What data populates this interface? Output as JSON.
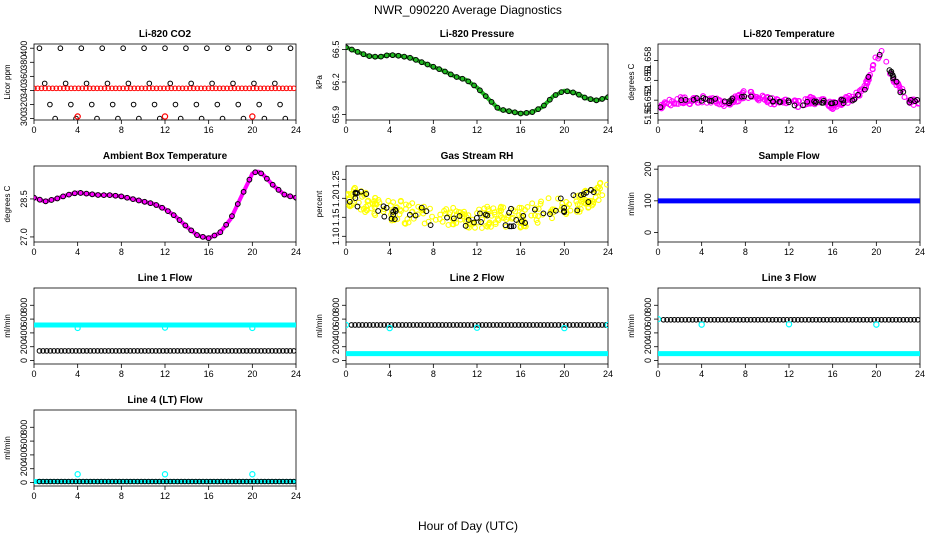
{
  "figure": {
    "title": "NWR_090220  Average Diagnostics",
    "xlabel": "Hour of Day (UTC)"
  },
  "colors": {
    "black": "#000000",
    "red": "#ff0000",
    "green": "#22bb22",
    "magenta": "#ff00ff",
    "yellow": "#ffff00",
    "cyan": "#00ffff",
    "blue": "#0000ff"
  },
  "chart_data": [
    {
      "type": "scatter",
      "title": "Li-820 CO2",
      "ylabel": "Licor ppm",
      "xlim": [
        0,
        24
      ],
      "ylim": [
        298,
        406
      ],
      "xticks": [
        0,
        4,
        8,
        12,
        16,
        20,
        24
      ],
      "yticks": [
        300,
        320,
        340,
        360,
        380,
        400
      ],
      "ytick_labels": [
        "300",
        "320",
        "340",
        "360",
        "380",
        "400"
      ],
      "series": [
        {
          "name": "reference levels",
          "color": "black",
          "style": "ring",
          "x_start": 0.5,
          "x_end": 23.5,
          "levels": [
            300,
            320,
            350,
            400
          ]
        },
        {
          "name": "sample",
          "color": "red",
          "style": "ring",
          "x_start": 0,
          "x_end": 23.8,
          "value": 343
        },
        {
          "name": "low outliers",
          "color": "red",
          "style": "ring",
          "x": [
            4,
            12,
            20
          ],
          "y": [
            303,
            303,
            303
          ]
        }
      ]
    },
    {
      "type": "scatter",
      "title": "Li-820 Pressure",
      "ylabel": "kPa",
      "xlim": [
        0,
        24
      ],
      "ylim": [
        65.85,
        66.55
      ],
      "xticks": [
        0,
        4,
        8,
        12,
        16,
        20,
        24
      ],
      "yticks": [
        65.9,
        66.2,
        66.5
      ],
      "ytick_labels": [
        "65.9",
        "66.2",
        "66.5"
      ],
      "series": [
        {
          "name": "pressure",
          "color": "green",
          "style": "line",
          "x": [
            0,
            1,
            2,
            3,
            4,
            5,
            6,
            7,
            8,
            9,
            10,
            11,
            12,
            13,
            14,
            15,
            16,
            17,
            18,
            19,
            20,
            21,
            22,
            23,
            24
          ],
          "y": [
            66.52,
            66.48,
            66.44,
            66.43,
            66.45,
            66.44,
            66.42,
            66.38,
            66.34,
            66.3,
            66.25,
            66.22,
            66.15,
            66.05,
            65.95,
            65.93,
            65.91,
            65.92,
            65.97,
            66.07,
            66.12,
            66.1,
            66.05,
            66.03,
            66.06
          ]
        }
      ]
    },
    {
      "type": "scatter",
      "title": "Li-820 Temperature",
      "ylabel": "degrees C",
      "xlim": [
        0,
        24
      ],
      "ylim": [
        51.649,
        51.6605
      ],
      "xticks": [
        0,
        4,
        8,
        12,
        16,
        20,
        24
      ],
      "yticks": [
        51.65,
        51.652,
        51.655,
        51.658
      ],
      "ytick_labels": [
        "51.65",
        "51.652",
        "51.655",
        "51.658"
      ],
      "series": [
        {
          "name": "temperature",
          "color": "magenta",
          "style": "scatter",
          "x": [
            0,
            1,
            2,
            3,
            4,
            5,
            6,
            7,
            8,
            9,
            10,
            11,
            12,
            13,
            14,
            15,
            16,
            17,
            18,
            19,
            20,
            20.5,
            21,
            22,
            23,
            24
          ],
          "y": [
            51.651,
            51.6515,
            51.652,
            51.6518,
            51.6522,
            51.652,
            51.6515,
            51.652,
            51.653,
            51.6525,
            51.652,
            51.6518,
            51.6515,
            51.6515,
            51.652,
            51.6517,
            51.6512,
            51.6518,
            51.6525,
            51.654,
            51.6585,
            51.6595,
            51.657,
            51.654,
            51.652,
            51.6515
          ],
          "spread": 0.0011
        }
      ]
    },
    {
      "type": "scatter",
      "title": "Ambient Box Temperature",
      "ylabel": "degrees C",
      "xlim": [
        0,
        24
      ],
      "ylim": [
        26.8,
        29.8
      ],
      "xticks": [
        0,
        4,
        8,
        12,
        16,
        20,
        24
      ],
      "yticks": [
        27.0,
        28.5
      ],
      "ytick_labels": [
        "27.0",
        "28.5"
      ],
      "series": [
        {
          "name": "box temperature",
          "color": "magenta",
          "style": "line",
          "x": [
            0,
            1,
            2,
            3,
            4,
            5,
            6,
            7,
            8,
            9,
            10,
            11,
            12,
            13,
            14,
            15,
            16,
            17,
            18,
            19,
            20,
            20.5,
            21,
            22,
            23,
            24
          ],
          "y": [
            28.55,
            28.4,
            28.5,
            28.65,
            28.75,
            28.7,
            28.65,
            28.65,
            28.6,
            28.5,
            28.4,
            28.3,
            28.1,
            27.8,
            27.4,
            27.05,
            26.95,
            27.15,
            27.7,
            28.6,
            29.5,
            29.6,
            29.45,
            29.0,
            28.65,
            28.55
          ]
        }
      ]
    },
    {
      "type": "scatter",
      "title": "Gas Stream RH",
      "ylabel": "percent",
      "xlim": [
        0,
        24
      ],
      "ylim": [
        1.085,
        1.285
      ],
      "xticks": [
        0,
        4,
        8,
        12,
        16,
        20,
        24
      ],
      "yticks": [
        1.1,
        1.15,
        1.2,
        1.25
      ],
      "ytick_labels": [
        "1.10",
        "1.15",
        "1.20",
        "1.25"
      ],
      "series": [
        {
          "name": "RH",
          "color": "yellow",
          "style": "scatter",
          "x": [
            0,
            2,
            4,
            6,
            8,
            10,
            12,
            14,
            16,
            18,
            20,
            22,
            24
          ],
          "y": [
            1.21,
            1.19,
            1.17,
            1.16,
            1.15,
            1.15,
            1.15,
            1.15,
            1.15,
            1.17,
            1.18,
            1.2,
            1.22
          ],
          "spread": 0.06
        }
      ]
    },
    {
      "type": "scatter",
      "title": "Sample Flow",
      "ylabel": "ml/min",
      "xlim": [
        0,
        24
      ],
      "ylim": [
        -30,
        210
      ],
      "xticks": [
        0,
        4,
        8,
        12,
        16,
        20,
        24
      ],
      "yticks": [
        0,
        100,
        200
      ],
      "ytick_labels": [
        "0",
        "100",
        "200"
      ],
      "series": [
        {
          "name": "sample flow",
          "color": "blue",
          "style": "band",
          "x_start": 0,
          "x_end": 24,
          "value": 100
        }
      ]
    },
    {
      "type": "scatter",
      "title": "Line 1 Flow",
      "ylabel": "ml/min",
      "xlim": [
        0,
        24
      ],
      "ylim": [
        -50,
        1050
      ],
      "xticks": [
        0,
        4,
        8,
        12,
        16,
        20,
        24
      ],
      "yticks": [
        0,
        200,
        400,
        600,
        800
      ],
      "ytick_labels": [
        "0",
        "200",
        "400",
        "600",
        "800"
      ],
      "series": [
        {
          "name": "line flow",
          "color": "cyan",
          "style": "band",
          "x_start": 0,
          "x_end": 24,
          "value": 515,
          "dips": [
            [
              4,
              470
            ],
            [
              12,
              475
            ],
            [
              20,
              470
            ]
          ]
        },
        {
          "name": "other lines",
          "color": "black",
          "style": "ring",
          "x_start": 0.5,
          "x_end": 23.8,
          "value": 140
        }
      ]
    },
    {
      "type": "scatter",
      "title": "Line 2 Flow",
      "ylabel": "ml/min",
      "xlim": [
        0,
        24
      ],
      "ylim": [
        -50,
        1050
      ],
      "xticks": [
        0,
        4,
        8,
        12,
        16,
        20,
        24
      ],
      "yticks": [
        0,
        200,
        400,
        600,
        800
      ],
      "ytick_labels": [
        "0",
        "200",
        "400",
        "600",
        "800"
      ],
      "series": [
        {
          "name": "line flow",
          "color": "cyan",
          "style": "band",
          "x_start": 0,
          "x_end": 24,
          "value": 100
        },
        {
          "name": "other lines",
          "color": "black",
          "style": "ring",
          "x_start": 0.5,
          "x_end": 23.8,
          "value": 515
        },
        {
          "name": "points",
          "color": "cyan",
          "style": "ring",
          "x": [
            0,
            4,
            12,
            20,
            24
          ],
          "y": [
            515,
            470,
            475,
            470,
            515
          ]
        }
      ]
    },
    {
      "type": "scatter",
      "title": "Line 3 Flow",
      "ylabel": "ml/min",
      "xlim": [
        0,
        24
      ],
      "ylim": [
        -50,
        1050
      ],
      "xticks": [
        0,
        4,
        8,
        12,
        16,
        20,
        24
      ],
      "yticks": [
        0,
        200,
        400,
        600,
        800
      ],
      "ytick_labels": [
        "0",
        "200",
        "400",
        "600",
        "800"
      ],
      "series": [
        {
          "name": "line flow",
          "color": "cyan",
          "style": "band",
          "x_start": 0,
          "x_end": 24,
          "value": 100
        },
        {
          "name": "other lines",
          "color": "black",
          "style": "ring",
          "x_start": 0.5,
          "x_end": 23.8,
          "value": 590
        },
        {
          "name": "points",
          "color": "cyan",
          "style": "ring",
          "x": [
            0,
            4,
            12,
            20
          ],
          "y": [
            600,
            520,
            525,
            520
          ]
        }
      ]
    },
    {
      "type": "scatter",
      "title": "Line 4 (LT) Flow",
      "ylabel": "ml/min",
      "xlim": [
        0,
        24
      ],
      "ylim": [
        -50,
        1050
      ],
      "xticks": [
        0,
        4,
        8,
        12,
        16,
        20,
        24
      ],
      "yticks": [
        0,
        200,
        400,
        600,
        800
      ],
      "ytick_labels": [
        "0",
        "200",
        "400",
        "600",
        "800"
      ],
      "series": [
        {
          "name": "line flow",
          "color": "cyan",
          "style": "band",
          "x_start": 0,
          "x_end": 24,
          "value": 15
        },
        {
          "name": "other lines",
          "color": "black",
          "style": "ring",
          "x_start": 0.5,
          "x_end": 23.8,
          "value": 15
        },
        {
          "name": "spikes",
          "color": "cyan",
          "style": "ring",
          "x": [
            4,
            12,
            20
          ],
          "y": [
            120,
            120,
            120
          ]
        }
      ]
    }
  ]
}
